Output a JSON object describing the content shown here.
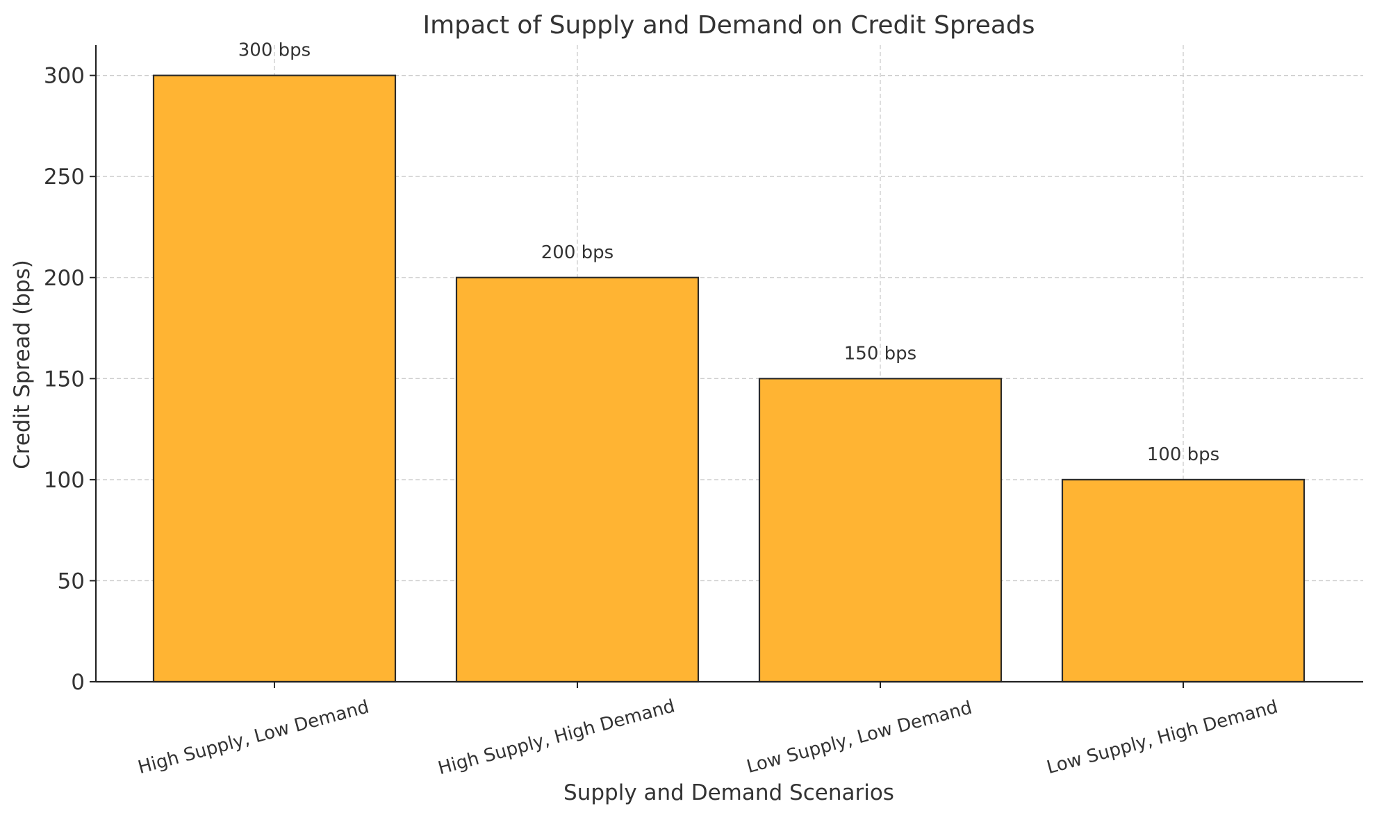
{
  "chart_data": {
    "type": "bar",
    "title": "Impact of Supply and Demand on Credit Spreads",
    "xlabel": "Supply and Demand Scenarios",
    "ylabel": "Credit Spread (bps)",
    "categories": [
      "High Supply, Low Demand",
      "High Supply, High Demand",
      "Low Supply, Low Demand",
      "Low Supply, High Demand"
    ],
    "values": [
      300,
      200,
      150,
      100
    ],
    "data_labels": [
      "300 bps",
      "200 bps",
      "150 bps",
      "100 bps"
    ],
    "ylim": [
      0,
      315
    ],
    "yticks": [
      0,
      50,
      100,
      150,
      200,
      250,
      300
    ],
    "grid": true,
    "bar_color": "#FFB433",
    "edge_color": "#2b2b2b"
  }
}
